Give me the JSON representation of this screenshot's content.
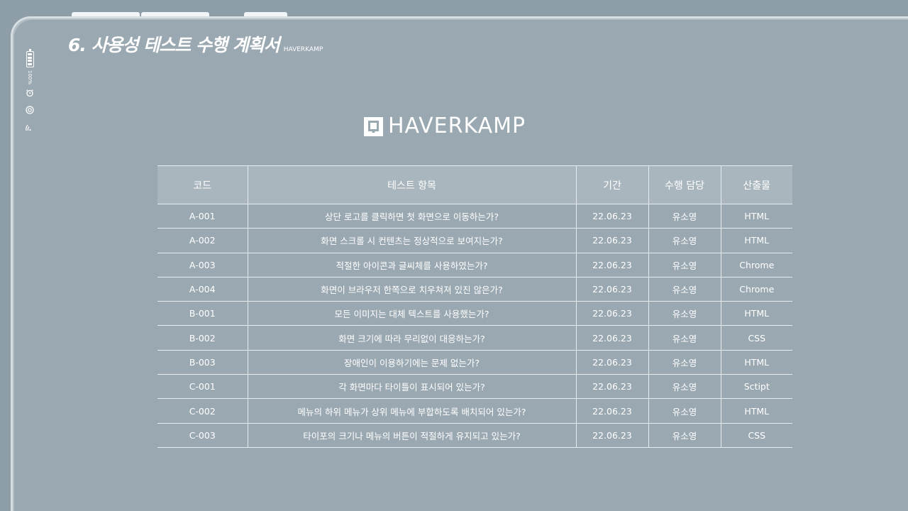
{
  "page": {
    "title": "6. 사용성 테스트 수행 계획서",
    "title_sub": "HAVERKAMP",
    "logo_text": "HAVERKAMP"
  },
  "status_bar": {
    "battery_label": "100%",
    "icons": [
      "battery-icon",
      "alarm-icon",
      "target-icon",
      "wifi-icon"
    ]
  },
  "colors": {
    "background": "#8e9ea8",
    "panel": "#9aa8b1",
    "header_fill": "#a9b6bd",
    "text": "#ffffff"
  },
  "table": {
    "headers": [
      "코드",
      "테스트 항목",
      "기간",
      "수행 담당",
      "산출물"
    ],
    "rows": [
      [
        "A-001",
        "상단 로고를 클릭하면 첫 화면으로 이동하는가?",
        "22.06.23",
        "유소영",
        "HTML"
      ],
      [
        "A-002",
        "화면 스크롤 시 컨텐츠는 정상적으로 보여지는가?",
        "22.06.23",
        "유소영",
        "HTML"
      ],
      [
        "A-003",
        "적절한 아이콘과 글씨체를 사용하였는가?",
        "22.06.23",
        "유소영",
        "Chrome"
      ],
      [
        "A-004",
        "화면이 브라우저 한쪽으로 치우쳐져 있진 않은가?",
        "22.06.23",
        "유소영",
        "Chrome"
      ],
      [
        "B-001",
        "모든 이미지는 대체 텍스트를 사용했는가?",
        "22.06.23",
        "유소영",
        "HTML"
      ],
      [
        "B-002",
        "화면 크기에 따라 무리없이 대응하는가?",
        "22.06.23",
        "유소영",
        "CSS"
      ],
      [
        "B-003",
        "장애인이 이용하기에는 문제 없는가?",
        "22.06.23",
        "유소영",
        "HTML"
      ],
      [
        "C-001",
        "각 화면마다 타이틀이 표시되어 있는가?",
        "22.06.23",
        "유소영",
        "Sctipt"
      ],
      [
        "C-002",
        "메뉴의 하위 메뉴가 상위 메뉴에 부합하도록 배치되어 있는가?",
        "22.06.23",
        "유소영",
        "HTML"
      ],
      [
        "C-003",
        "타이포의 크기나 메뉴의 버튼이 적절하게 유지되고 있는가?",
        "22.06.23",
        "유소영",
        "CSS"
      ]
    ]
  }
}
